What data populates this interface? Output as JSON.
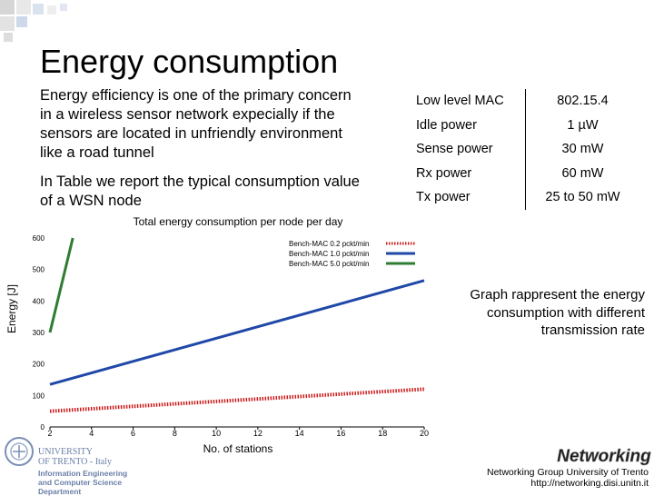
{
  "slide": {
    "title": "Energy consumption",
    "para1": "Energy efficiency is one of the primary concern in a wireless sensor network expecially if the sensors are located in unfriendly environment like a road tunnel",
    "para2": "In Table we report the typical consumption value of a WSN node",
    "graph_note": "Graph rappresent the energy consumption with different transmission rate"
  },
  "table": {
    "rows": [
      {
        "label": "Low level MAC",
        "value": "802.15.4"
      },
      {
        "label": "Idle power",
        "value": "1 µW"
      },
      {
        "label": "Sense power",
        "value": "30 mW"
      },
      {
        "label": "Rx power",
        "value": "60 mW"
      },
      {
        "label": "Tx power",
        "value": "25 to 50 mW"
      }
    ]
  },
  "chart_data": {
    "type": "line",
    "title": "Total energy consumption per node per day",
    "xlabel": "No. of stations",
    "ylabel": "Energy [J]",
    "xlim": [
      2,
      20
    ],
    "ylim": [
      0,
      600
    ],
    "xticks": [
      2,
      4,
      6,
      8,
      10,
      12,
      14,
      16,
      18,
      20
    ],
    "yticks": [
      0,
      100,
      200,
      300,
      400,
      500,
      600
    ],
    "legend_position": "top-right",
    "series": [
      {
        "name": "Bench-MAC 0.2 pckt/min",
        "color": "#cc1a1a",
        "style": "dotted",
        "x": [
          2,
          20
        ],
        "y": [
          50,
          120
        ]
      },
      {
        "name": "Bench-MAC 1.0 pckt/min",
        "color": "#1f48a8",
        "style": "solid",
        "x": [
          2,
          20
        ],
        "y": [
          135,
          465
        ]
      },
      {
        "name": "Bench-MAC 5.0 pckt/min",
        "color": "#2e7d32",
        "style": "solid",
        "x": [
          2,
          3.1
        ],
        "y": [
          300,
          600
        ]
      }
    ]
  },
  "footer": {
    "university_name": "UNIVERSITY",
    "university_city": "OF TRENTO - Italy",
    "department_line1": "Information Engineering",
    "department_line2": "and Computer Science Department",
    "logo_text": "Networking",
    "group_name": "Networking Group University of Trento",
    "group_url": "http://networking.disi.unitn.it"
  },
  "colors": {
    "accent_green": "#8aa63a",
    "accent_blue": "#5b78b0",
    "deco_gray": "#c8c8c8"
  }
}
